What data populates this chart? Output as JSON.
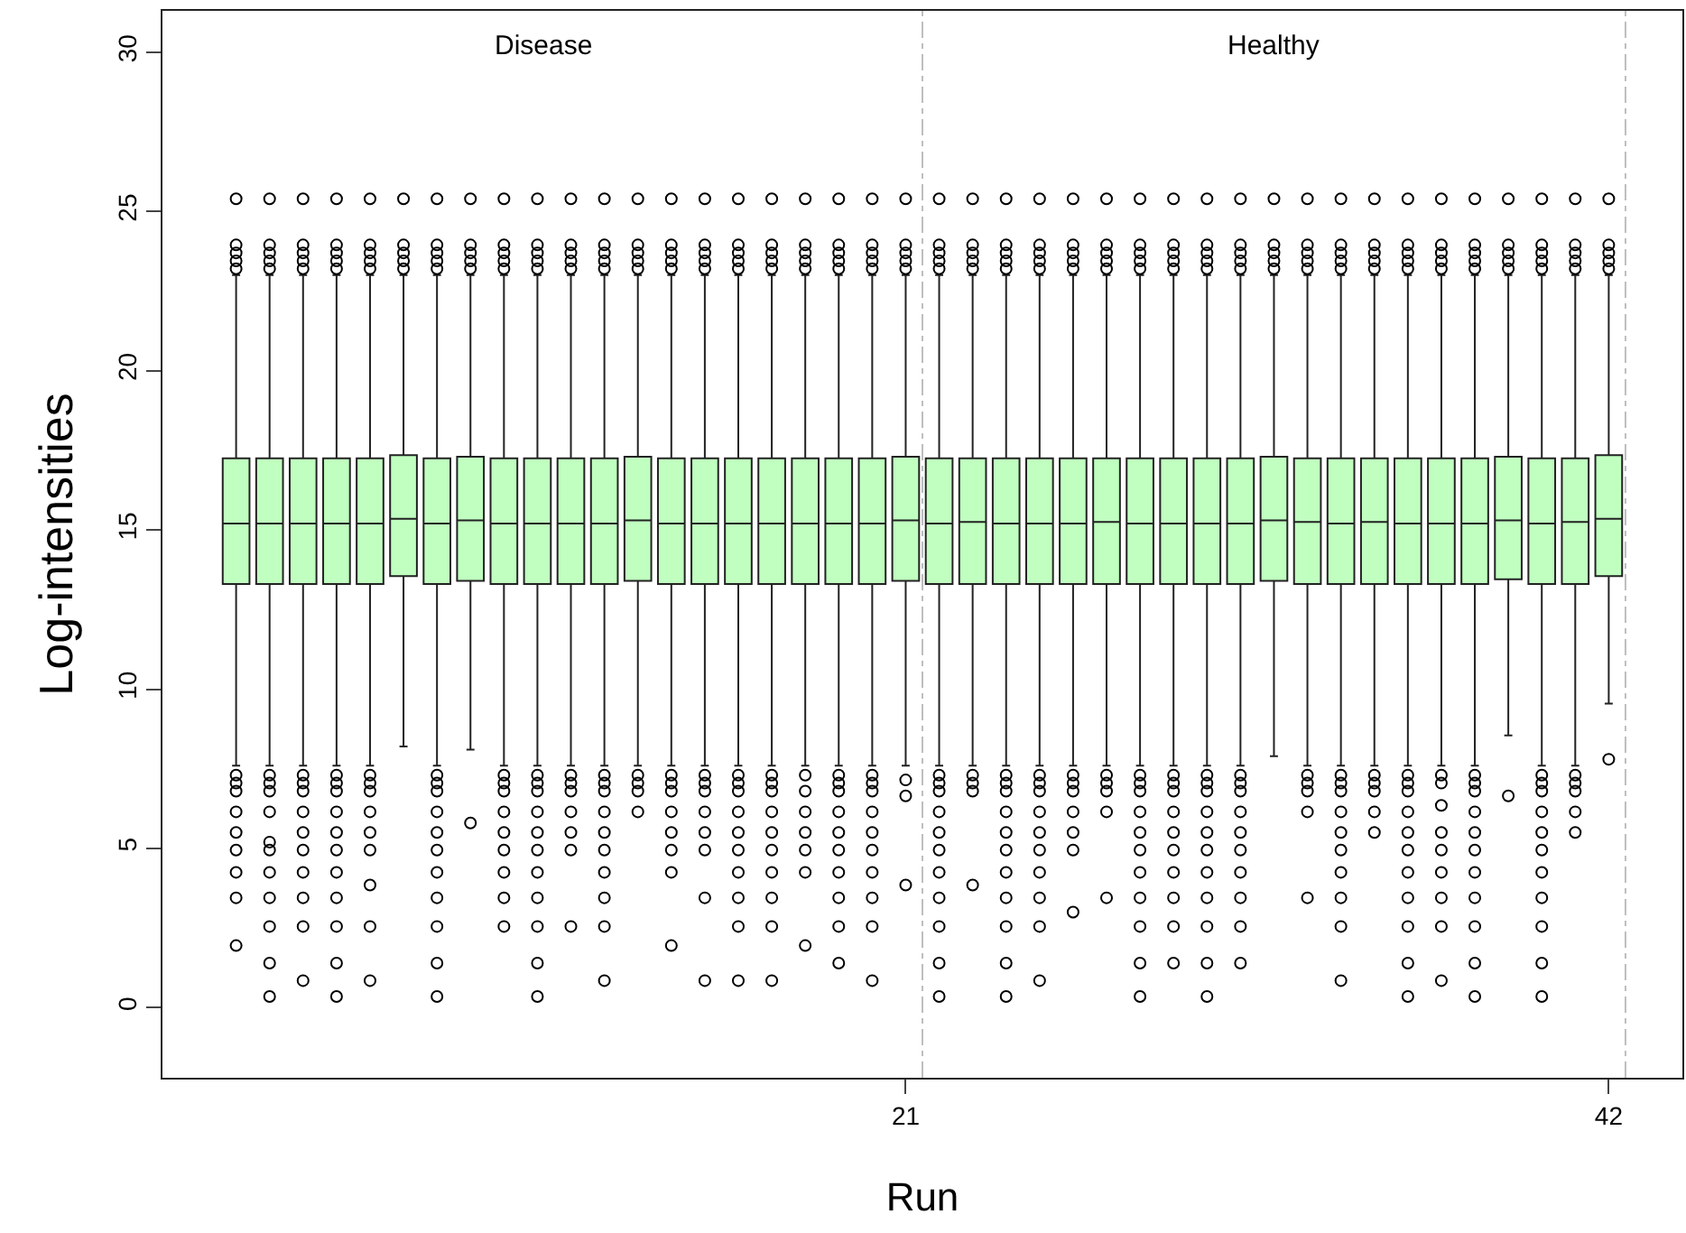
{
  "chart_data": {
    "type": "box",
    "xlabel": "Run",
    "ylabel": "Log-intensities",
    "x": [
      1,
      2,
      3,
      4,
      5,
      6,
      7,
      8,
      9,
      10,
      11,
      12,
      13,
      14,
      15,
      16,
      17,
      18,
      19,
      20,
      21,
      22,
      23,
      24,
      25,
      26,
      27,
      28,
      29,
      30,
      31,
      32,
      33,
      34,
      35,
      36,
      37,
      38,
      39,
      40,
      41,
      42
    ],
    "xlim": [
      -1.2,
      44.2
    ],
    "xticks": [
      21,
      42
    ],
    "ylim": [
      -2.2,
      31.3
    ],
    "yticks": [
      0,
      5,
      10,
      15,
      20,
      25,
      30
    ],
    "marker": "circle",
    "ref_lines": [
      {
        "axis": "x",
        "value": 21.5,
        "color": "#bebebe",
        "line_style": "dashed"
      },
      {
        "axis": "x",
        "value": 42.5,
        "color": "#bebebe",
        "line_style": "dashed"
      }
    ],
    "annotations": [
      "Disease",
      "Healthy"
    ],
    "series": [
      {
        "color": "#c0ffc0",
        "boxes": [
          {
            "low": 7.6,
            "q1": 13.3,
            "median": 15.2,
            "q3": 17.25,
            "high": 23.0,
            "outliers": [
              23.2,
              23.45,
              23.7,
              23.95,
              25.4,
              7.3,
              7.05,
              6.8,
              6.15,
              5.5,
              4.95,
              4.25,
              3.45,
              1.95
            ]
          },
          {
            "low": 7.6,
            "q1": 13.3,
            "median": 15.2,
            "q3": 17.25,
            "high": 23.0,
            "outliers": [
              23.2,
              23.45,
              23.7,
              23.95,
              25.4,
              7.3,
              7.05,
              6.8,
              6.15,
              5.2,
              4.95,
              4.25,
              3.45,
              2.55,
              1.4,
              0.35
            ]
          },
          {
            "low": 7.6,
            "q1": 13.3,
            "median": 15.2,
            "q3": 17.25,
            "high": 23.0,
            "outliers": [
              23.2,
              23.45,
              23.7,
              23.95,
              25.4,
              7.3,
              7.05,
              6.8,
              6.15,
              5.5,
              4.95,
              4.25,
              3.45,
              2.55,
              0.85
            ]
          },
          {
            "low": 7.6,
            "q1": 13.3,
            "median": 15.2,
            "q3": 17.25,
            "high": 23.0,
            "outliers": [
              23.2,
              23.45,
              23.7,
              23.95,
              25.4,
              7.3,
              7.05,
              6.8,
              6.15,
              5.5,
              4.95,
              4.25,
              3.45,
              2.55,
              1.4,
              0.35
            ]
          },
          {
            "low": 7.6,
            "q1": 13.3,
            "median": 15.2,
            "q3": 17.25,
            "high": 23.0,
            "outliers": [
              23.2,
              23.45,
              23.7,
              23.95,
              25.4,
              7.3,
              7.05,
              6.8,
              6.15,
              5.5,
              4.95,
              3.85,
              2.55,
              0.85
            ]
          },
          {
            "low": 8.2,
            "q1": 13.55,
            "median": 15.35,
            "q3": 17.35,
            "high": 23.0,
            "outliers": [
              23.2,
              23.45,
              23.7,
              23.95,
              25.4
            ]
          },
          {
            "low": 7.6,
            "q1": 13.3,
            "median": 15.2,
            "q3": 17.25,
            "high": 23.0,
            "outliers": [
              23.2,
              23.45,
              23.7,
              23.95,
              25.4,
              7.3,
              7.05,
              6.8,
              6.15,
              5.5,
              4.95,
              4.25,
              3.45,
              2.55,
              1.4,
              0.35
            ]
          },
          {
            "low": 8.1,
            "q1": 13.4,
            "median": 15.3,
            "q3": 17.3,
            "high": 23.0,
            "outliers": [
              23.2,
              23.45,
              23.7,
              23.95,
              25.4,
              5.8
            ]
          },
          {
            "low": 7.6,
            "q1": 13.3,
            "median": 15.2,
            "q3": 17.25,
            "high": 23.0,
            "outliers": [
              23.2,
              23.45,
              23.7,
              23.95,
              25.4,
              7.3,
              7.05,
              6.8,
              6.15,
              5.5,
              4.95,
              4.25,
              3.45,
              2.55
            ]
          },
          {
            "low": 7.6,
            "q1": 13.3,
            "median": 15.2,
            "q3": 17.25,
            "high": 23.0,
            "outliers": [
              23.2,
              23.45,
              23.7,
              23.95,
              25.4,
              7.3,
              7.05,
              6.8,
              6.15,
              5.5,
              4.95,
              4.25,
              3.45,
              2.55,
              1.4,
              0.35
            ]
          },
          {
            "low": 7.6,
            "q1": 13.3,
            "median": 15.2,
            "q3": 17.25,
            "high": 23.0,
            "outliers": [
              23.2,
              23.45,
              23.7,
              23.95,
              25.4,
              7.3,
              7.05,
              6.8,
              6.15,
              5.5,
              4.95,
              2.55
            ]
          },
          {
            "low": 7.6,
            "q1": 13.3,
            "median": 15.2,
            "q3": 17.25,
            "high": 23.0,
            "outliers": [
              23.2,
              23.45,
              23.7,
              23.95,
              25.4,
              7.3,
              7.05,
              6.8,
              6.15,
              5.5,
              4.95,
              4.25,
              3.45,
              2.55,
              0.85
            ]
          },
          {
            "low": 7.6,
            "q1": 13.4,
            "median": 15.3,
            "q3": 17.3,
            "high": 23.0,
            "outliers": [
              23.2,
              23.45,
              23.7,
              23.95,
              25.4,
              7.3,
              7.05,
              6.8,
              6.15
            ]
          },
          {
            "low": 7.6,
            "q1": 13.3,
            "median": 15.2,
            "q3": 17.25,
            "high": 23.0,
            "outliers": [
              23.2,
              23.45,
              23.7,
              23.95,
              25.4,
              7.3,
              7.05,
              6.8,
              6.15,
              5.5,
              4.95,
              4.25,
              1.95
            ]
          },
          {
            "low": 7.6,
            "q1": 13.3,
            "median": 15.2,
            "q3": 17.25,
            "high": 23.0,
            "outliers": [
              23.2,
              23.45,
              23.7,
              23.95,
              25.4,
              7.3,
              7.05,
              6.8,
              6.15,
              5.5,
              4.95,
              3.45,
              0.85
            ]
          },
          {
            "low": 7.6,
            "q1": 13.3,
            "median": 15.2,
            "q3": 17.25,
            "high": 23.0,
            "outliers": [
              23.2,
              23.45,
              23.7,
              23.95,
              25.4,
              7.3,
              7.05,
              6.8,
              6.15,
              5.5,
              4.95,
              4.25,
              3.45,
              2.55,
              0.85
            ]
          },
          {
            "low": 7.6,
            "q1": 13.3,
            "median": 15.2,
            "q3": 17.25,
            "high": 23.0,
            "outliers": [
              23.2,
              23.45,
              23.7,
              23.95,
              25.4,
              7.3,
              7.05,
              6.8,
              6.15,
              5.5,
              4.95,
              4.25,
              3.45,
              2.55,
              0.85
            ]
          },
          {
            "low": 7.6,
            "q1": 13.3,
            "median": 15.2,
            "q3": 17.25,
            "high": 23.0,
            "outliers": [
              23.2,
              23.45,
              23.7,
              23.95,
              25.4,
              7.3,
              6.8,
              6.15,
              5.5,
              4.95,
              4.25,
              1.95
            ]
          },
          {
            "low": 7.6,
            "q1": 13.3,
            "median": 15.2,
            "q3": 17.25,
            "high": 23.0,
            "outliers": [
              23.2,
              23.45,
              23.7,
              23.95,
              25.4,
              7.3,
              7.05,
              6.8,
              6.15,
              5.5,
              4.95,
              4.25,
              3.45,
              2.55,
              1.4
            ]
          },
          {
            "low": 7.6,
            "q1": 13.3,
            "median": 15.2,
            "q3": 17.25,
            "high": 23.0,
            "outliers": [
              23.2,
              23.45,
              23.7,
              23.95,
              25.4,
              7.3,
              7.05,
              6.8,
              6.15,
              5.5,
              4.95,
              4.25,
              3.45,
              2.55,
              0.85
            ]
          },
          {
            "low": 7.6,
            "q1": 13.4,
            "median": 15.3,
            "q3": 17.3,
            "high": 23.0,
            "outliers": [
              23.2,
              23.45,
              23.7,
              23.95,
              25.4,
              7.15,
              6.65,
              3.85
            ]
          },
          {
            "low": 7.6,
            "q1": 13.3,
            "median": 15.2,
            "q3": 17.25,
            "high": 23.0,
            "outliers": [
              23.2,
              23.45,
              23.7,
              23.95,
              25.4,
              7.3,
              7.05,
              6.8,
              6.15,
              5.5,
              4.95,
              4.25,
              3.45,
              2.55,
              1.4,
              0.35
            ]
          },
          {
            "low": 7.6,
            "q1": 13.3,
            "median": 15.25,
            "q3": 17.25,
            "high": 23.0,
            "outliers": [
              23.2,
              23.45,
              23.7,
              23.95,
              25.4,
              7.3,
              7.05,
              6.8,
              3.85
            ]
          },
          {
            "low": 7.6,
            "q1": 13.3,
            "median": 15.2,
            "q3": 17.25,
            "high": 23.0,
            "outliers": [
              23.2,
              23.45,
              23.7,
              23.95,
              25.4,
              7.3,
              7.05,
              6.8,
              6.15,
              5.5,
              4.95,
              4.25,
              3.45,
              2.55,
              1.4,
              0.35
            ]
          },
          {
            "low": 7.6,
            "q1": 13.3,
            "median": 15.2,
            "q3": 17.25,
            "high": 23.0,
            "outliers": [
              23.2,
              23.45,
              23.7,
              23.95,
              25.4,
              7.3,
              7.05,
              6.8,
              6.15,
              5.5,
              4.95,
              4.25,
              3.45,
              2.55,
              0.85
            ]
          },
          {
            "low": 7.6,
            "q1": 13.3,
            "median": 15.2,
            "q3": 17.25,
            "high": 23.0,
            "outliers": [
              23.2,
              23.45,
              23.7,
              23.95,
              25.4,
              7.3,
              7.05,
              6.8,
              6.15,
              5.5,
              4.95,
              3.0
            ]
          },
          {
            "low": 7.6,
            "q1": 13.3,
            "median": 15.25,
            "q3": 17.25,
            "high": 23.0,
            "outliers": [
              23.2,
              23.45,
              23.7,
              23.95,
              25.4,
              7.3,
              7.05,
              6.8,
              6.15,
              3.45
            ]
          },
          {
            "low": 7.6,
            "q1": 13.3,
            "median": 15.2,
            "q3": 17.25,
            "high": 23.0,
            "outliers": [
              23.2,
              23.45,
              23.7,
              23.95,
              25.4,
              7.3,
              7.05,
              6.8,
              6.15,
              5.5,
              4.95,
              4.25,
              3.45,
              2.55,
              1.4,
              0.35
            ]
          },
          {
            "low": 7.6,
            "q1": 13.3,
            "median": 15.2,
            "q3": 17.25,
            "high": 23.0,
            "outliers": [
              23.2,
              23.45,
              23.7,
              23.95,
              25.4,
              7.3,
              7.05,
              6.8,
              6.15,
              5.5,
              4.95,
              4.25,
              3.45,
              2.55,
              1.4
            ]
          },
          {
            "low": 7.6,
            "q1": 13.3,
            "median": 15.2,
            "q3": 17.25,
            "high": 23.0,
            "outliers": [
              23.2,
              23.45,
              23.7,
              23.95,
              25.4,
              7.3,
              7.05,
              6.8,
              6.15,
              5.5,
              4.95,
              4.25,
              3.45,
              2.55,
              1.4,
              0.35
            ]
          },
          {
            "low": 7.6,
            "q1": 13.3,
            "median": 15.2,
            "q3": 17.25,
            "high": 23.0,
            "outliers": [
              23.2,
              23.45,
              23.7,
              23.95,
              25.4,
              7.3,
              7.05,
              6.8,
              6.15,
              5.5,
              4.95,
              4.25,
              3.45,
              2.55,
              1.4
            ]
          },
          {
            "low": 7.9,
            "q1": 13.4,
            "median": 15.3,
            "q3": 17.3,
            "high": 23.0,
            "outliers": [
              23.2,
              23.45,
              23.7,
              23.95,
              25.4
            ]
          },
          {
            "low": 7.6,
            "q1": 13.3,
            "median": 15.25,
            "q3": 17.25,
            "high": 23.0,
            "outliers": [
              23.2,
              23.45,
              23.7,
              23.95,
              25.4,
              7.3,
              7.05,
              6.8,
              6.15,
              3.45
            ]
          },
          {
            "low": 7.6,
            "q1": 13.3,
            "median": 15.2,
            "q3": 17.25,
            "high": 23.0,
            "outliers": [
              23.2,
              23.45,
              23.7,
              23.95,
              25.4,
              7.3,
              7.05,
              6.8,
              6.15,
              5.5,
              4.95,
              4.25,
              3.45,
              2.55,
              0.85
            ]
          },
          {
            "low": 7.6,
            "q1": 13.3,
            "median": 15.25,
            "q3": 17.25,
            "high": 23.0,
            "outliers": [
              23.2,
              23.45,
              23.7,
              23.95,
              25.4,
              7.3,
              7.05,
              6.8,
              6.15,
              5.5
            ]
          },
          {
            "low": 7.6,
            "q1": 13.3,
            "median": 15.2,
            "q3": 17.25,
            "high": 23.0,
            "outliers": [
              23.2,
              23.45,
              23.7,
              23.95,
              25.4,
              7.3,
              7.05,
              6.8,
              6.15,
              5.5,
              4.95,
              4.25,
              3.45,
              2.55,
              1.4,
              0.35
            ]
          },
          {
            "low": 7.6,
            "q1": 13.3,
            "median": 15.2,
            "q3": 17.25,
            "high": 23.0,
            "outliers": [
              23.2,
              23.45,
              23.7,
              23.95,
              25.4,
              7.3,
              7.05,
              6.35,
              5.5,
              4.95,
              4.25,
              3.45,
              2.55,
              0.85
            ]
          },
          {
            "low": 7.6,
            "q1": 13.3,
            "median": 15.2,
            "q3": 17.25,
            "high": 23.0,
            "outliers": [
              23.2,
              23.45,
              23.7,
              23.95,
              25.4,
              7.3,
              7.05,
              6.8,
              6.15,
              5.5,
              4.95,
              4.25,
              3.45,
              2.55,
              1.4,
              0.35
            ]
          },
          {
            "low": 8.55,
            "q1": 13.45,
            "median": 15.3,
            "q3": 17.3,
            "high": 23.0,
            "outliers": [
              23.2,
              23.45,
              23.7,
              23.95,
              25.4,
              6.65
            ]
          },
          {
            "low": 7.6,
            "q1": 13.3,
            "median": 15.2,
            "q3": 17.25,
            "high": 23.0,
            "outliers": [
              23.2,
              23.45,
              23.7,
              23.95,
              25.4,
              7.3,
              7.05,
              6.8,
              6.15,
              5.5,
              4.95,
              4.25,
              3.45,
              2.55,
              1.4,
              0.35
            ]
          },
          {
            "low": 7.6,
            "q1": 13.3,
            "median": 15.25,
            "q3": 17.25,
            "high": 23.0,
            "outliers": [
              23.2,
              23.45,
              23.7,
              23.95,
              25.4,
              7.3,
              7.05,
              6.8,
              6.15,
              5.5
            ]
          },
          {
            "low": 9.55,
            "q1": 13.55,
            "median": 15.35,
            "q3": 17.35,
            "high": 23.0,
            "outliers": [
              23.2,
              23.45,
              23.7,
              23.95,
              25.4,
              7.8
            ]
          }
        ]
      }
    ]
  }
}
